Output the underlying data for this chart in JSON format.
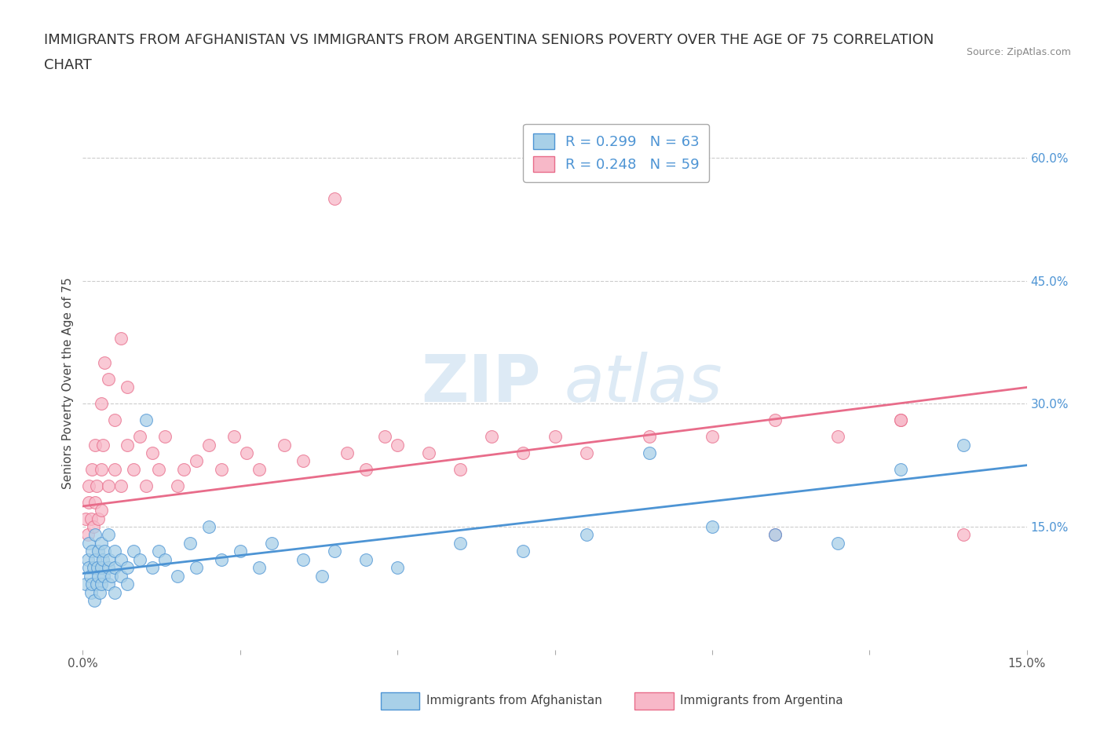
{
  "title_line1": "IMMIGRANTS FROM AFGHANISTAN VS IMMIGRANTS FROM ARGENTINA SENIORS POVERTY OVER THE AGE OF 75 CORRELATION",
  "title_line2": "CHART",
  "source": "Source: ZipAtlas.com",
  "ylabel": "Seniors Poverty Over the Age of 75",
  "xlim": [
    0.0,
    0.15
  ],
  "ylim": [
    0.0,
    0.65
  ],
  "ytick_vals_right": [
    0.15,
    0.3,
    0.45,
    0.6
  ],
  "color_afghanistan": "#a8d0e8",
  "color_argentina": "#f7b8c8",
  "line_color_afghanistan": "#4d94d4",
  "line_color_argentina": "#e86c8a",
  "R_afghanistan": 0.299,
  "N_afghanistan": 63,
  "R_argentina": 0.248,
  "N_argentina": 59,
  "legend_label_afghanistan": "Immigrants from Afghanistan",
  "legend_label_argentina": "Immigrants from Argentina",
  "watermark_zip": "ZIP",
  "watermark_atlas": "atlas",
  "background_color": "#ffffff",
  "grid_color": "#cccccc",
  "title_fontsize": 13,
  "axis_label_fontsize": 11,
  "tick_fontsize": 11,
  "legend_fontsize": 13,
  "af_trend_x0": 0.0,
  "af_trend_y0": 0.093,
  "af_trend_x1": 0.15,
  "af_trend_y1": 0.225,
  "ar_trend_x0": 0.0,
  "ar_trend_y0": 0.175,
  "ar_trend_x1": 0.15,
  "ar_trend_y1": 0.32,
  "afghanistan_scatter_x": [
    0.0005,
    0.0008,
    0.001,
    0.001,
    0.0012,
    0.0013,
    0.0015,
    0.0015,
    0.0017,
    0.0018,
    0.002,
    0.002,
    0.0022,
    0.0023,
    0.0025,
    0.0025,
    0.0027,
    0.003,
    0.003,
    0.003,
    0.0032,
    0.0033,
    0.0035,
    0.004,
    0.004,
    0.004,
    0.0042,
    0.0045,
    0.005,
    0.005,
    0.005,
    0.006,
    0.006,
    0.007,
    0.007,
    0.008,
    0.009,
    0.01,
    0.011,
    0.012,
    0.013,
    0.015,
    0.017,
    0.018,
    0.02,
    0.022,
    0.025,
    0.028,
    0.03,
    0.035,
    0.038,
    0.04,
    0.045,
    0.05,
    0.06,
    0.07,
    0.08,
    0.09,
    0.1,
    0.11,
    0.12,
    0.13,
    0.14
  ],
  "afghanistan_scatter_y": [
    0.08,
    0.11,
    0.1,
    0.13,
    0.09,
    0.07,
    0.12,
    0.08,
    0.1,
    0.06,
    0.11,
    0.14,
    0.08,
    0.1,
    0.09,
    0.12,
    0.07,
    0.1,
    0.13,
    0.08,
    0.11,
    0.09,
    0.12,
    0.1,
    0.08,
    0.14,
    0.11,
    0.09,
    0.12,
    0.07,
    0.1,
    0.09,
    0.11,
    0.1,
    0.08,
    0.12,
    0.11,
    0.28,
    0.1,
    0.12,
    0.11,
    0.09,
    0.13,
    0.1,
    0.15,
    0.11,
    0.12,
    0.1,
    0.13,
    0.11,
    0.09,
    0.12,
    0.11,
    0.1,
    0.13,
    0.12,
    0.14,
    0.24,
    0.15,
    0.14,
    0.13,
    0.22,
    0.25
  ],
  "argentina_scatter_x": [
    0.0005,
    0.0008,
    0.001,
    0.001,
    0.0013,
    0.0015,
    0.0017,
    0.002,
    0.002,
    0.0022,
    0.0025,
    0.003,
    0.003,
    0.003,
    0.0032,
    0.0035,
    0.004,
    0.004,
    0.005,
    0.005,
    0.006,
    0.006,
    0.007,
    0.007,
    0.008,
    0.009,
    0.01,
    0.011,
    0.012,
    0.013,
    0.015,
    0.016,
    0.018,
    0.02,
    0.022,
    0.024,
    0.026,
    0.028,
    0.032,
    0.035,
    0.04,
    0.042,
    0.045,
    0.048,
    0.05,
    0.055,
    0.06,
    0.065,
    0.07,
    0.075,
    0.08,
    0.09,
    0.1,
    0.11,
    0.12,
    0.13,
    0.14,
    0.11,
    0.13
  ],
  "argentina_scatter_y": [
    0.16,
    0.14,
    0.18,
    0.2,
    0.16,
    0.22,
    0.15,
    0.18,
    0.25,
    0.2,
    0.16,
    0.22,
    0.17,
    0.3,
    0.25,
    0.35,
    0.2,
    0.33,
    0.22,
    0.28,
    0.2,
    0.38,
    0.25,
    0.32,
    0.22,
    0.26,
    0.2,
    0.24,
    0.22,
    0.26,
    0.2,
    0.22,
    0.23,
    0.25,
    0.22,
    0.26,
    0.24,
    0.22,
    0.25,
    0.23,
    0.55,
    0.24,
    0.22,
    0.26,
    0.25,
    0.24,
    0.22,
    0.26,
    0.24,
    0.26,
    0.24,
    0.26,
    0.26,
    0.28,
    0.26,
    0.28,
    0.14,
    0.14,
    0.28
  ]
}
